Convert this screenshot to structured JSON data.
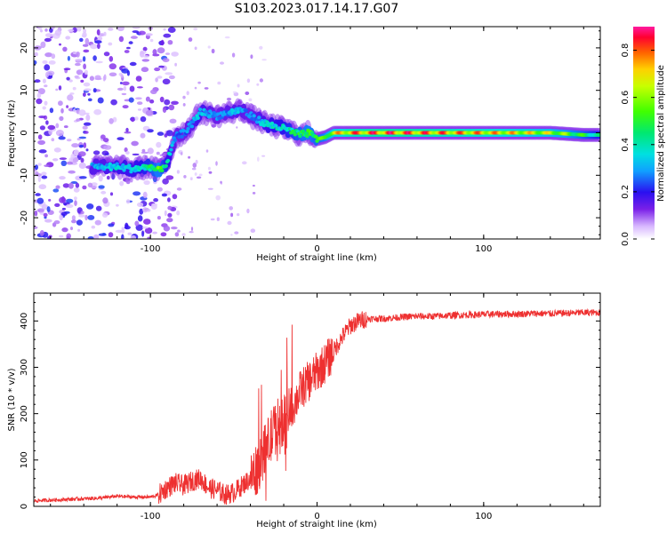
{
  "title": "S103.2023.017.14.17.G07",
  "chart_data": [
    {
      "type": "heatmap",
      "xlabel": "Height of straight line (km)",
      "ylabel": "Frequency (Hz)",
      "xlim": [
        -170,
        170
      ],
      "ylim": [
        -25,
        25
      ],
      "xticks": [
        -100,
        0,
        100
      ],
      "yticks": [
        -20,
        -10,
        0,
        10,
        20
      ],
      "colorbar": {
        "label": "Normalized spectral amplitude",
        "range": [
          0.0,
          0.9
        ],
        "ticks": [
          0.0,
          0.2,
          0.4,
          0.6,
          0.8
        ]
      },
      "ridge": {
        "x": [
          -130,
          -120,
          -110,
          -100,
          -95,
          -90,
          -85,
          -80,
          -75,
          -70,
          -60,
          -50,
          -45,
          -40,
          -35,
          -30,
          -20,
          -10,
          -5,
          0,
          5,
          10,
          20,
          40,
          60,
          80,
          100,
          120,
          140,
          160,
          170
        ],
        "y": [
          -8,
          -8,
          -8.5,
          -8,
          -9,
          -7,
          -1,
          0,
          2,
          5,
          4,
          5,
          5.5,
          4,
          3,
          2,
          1,
          -0.5,
          0,
          -1.5,
          -1,
          0,
          0,
          0,
          0,
          0,
          0,
          0,
          0,
          -0.5,
          -0.5
        ],
        "amplitude": [
          0.35,
          0.4,
          0.4,
          0.5,
          0.6,
          0.45,
          0.3,
          0.3,
          0.35,
          0.4,
          0.3,
          0.35,
          0.35,
          0.3,
          0.35,
          0.4,
          0.45,
          0.55,
          0.6,
          0.55,
          0.6,
          0.75,
          0.85,
          0.9,
          0.88,
          0.85,
          0.82,
          0.78,
          0.72,
          0.55,
          0.45
        ]
      }
    },
    {
      "type": "line",
      "xlabel": "Height of straight line (km)",
      "ylabel": "SNR (10 * v/v)",
      "xlim": [
        -170,
        170
      ],
      "ylim": [
        0,
        460
      ],
      "xticks": [
        -100,
        0,
        100
      ],
      "yticks": [
        0,
        100,
        200,
        300,
        400
      ],
      "series": [
        {
          "color": "#ee3030",
          "x": [
            -170,
            -150,
            -130,
            -120,
            -110,
            -100,
            -95,
            -90,
            -85,
            -80,
            -75,
            -70,
            -65,
            -60,
            -55,
            -50,
            -45,
            -40,
            -35,
            -30,
            -25,
            -20,
            -15,
            -10,
            -5,
            0,
            5,
            10,
            15,
            20,
            25,
            30,
            40,
            50,
            60,
            70,
            80,
            90,
            100,
            110,
            120,
            130,
            140,
            150,
            160,
            170
          ],
          "values": [
            12,
            15,
            18,
            22,
            20,
            20,
            25,
            40,
            50,
            45,
            55,
            60,
            40,
            35,
            25,
            30,
            45,
            60,
            90,
            130,
            170,
            190,
            210,
            250,
            270,
            290,
            310,
            335,
            365,
            390,
            400,
            405,
            405,
            408,
            410,
            410,
            412,
            413,
            414,
            415,
            415,
            416,
            416,
            417,
            418,
            418
          ]
        }
      ]
    }
  ]
}
